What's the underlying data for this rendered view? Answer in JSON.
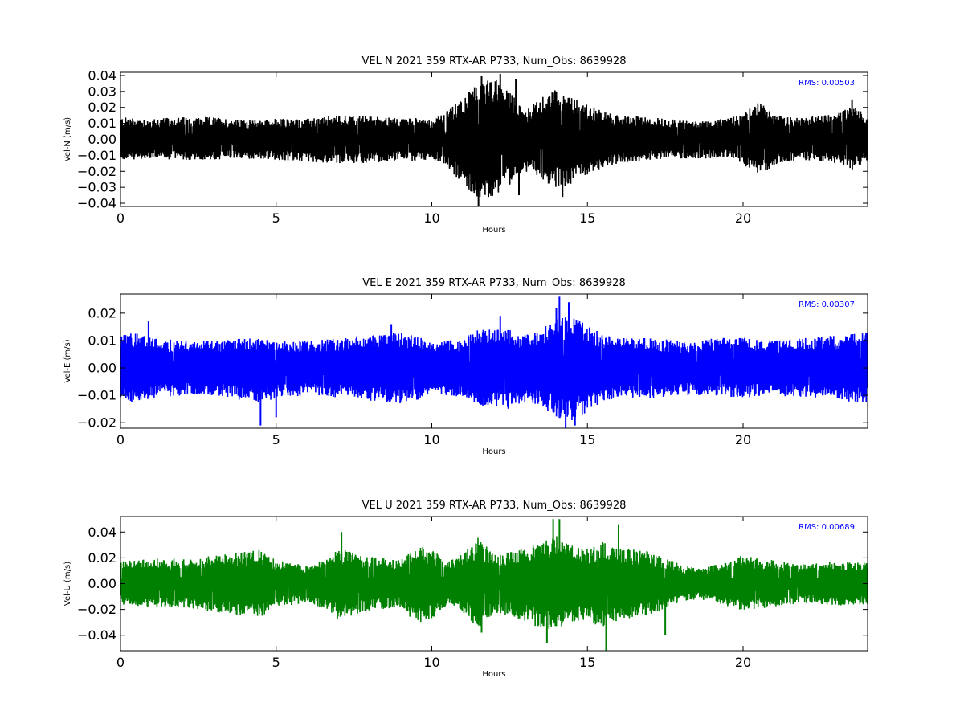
{
  "chart_data": [
    {
      "type": "line",
      "title": "VEL N 2021 359 RTX-AR  P733, Num_Obs: 8639928",
      "xlabel": "Hours",
      "ylabel": "Vel-N (m/s)",
      "xlim": [
        0,
        24
      ],
      "ylim": [
        -0.042,
        0.042
      ],
      "xticks": [
        0,
        5,
        10,
        15,
        20
      ],
      "xtick_labels": [
        "0",
        "5",
        "10",
        "15",
        "20"
      ],
      "yticks": [
        -0.04,
        -0.03,
        -0.02,
        -0.01,
        0.0,
        0.01,
        0.02,
        0.03,
        0.04
      ],
      "ytick_labels": [
        "−0.04",
        "−0.03",
        "−0.02",
        "−0.01",
        "0.00",
        "0.01",
        "0.02",
        "0.03",
        "0.04"
      ],
      "color": "#000000",
      "rms_text": "RMS:  0.00503",
      "grid": false,
      "series": [
        {
          "envelope": {
            "x": [
              0,
              1,
              2,
              3,
              4,
              5,
              6,
              7,
              8,
              9,
              9.5,
              10,
              10.5,
              11,
              11.5,
              12,
              12.5,
              13,
              13.5,
              14,
              14.5,
              15,
              15.5,
              16,
              17,
              18,
              19,
              19.5,
              20,
              20.5,
              21,
              21.5,
              22,
              23,
              23.5,
              24
            ],
            "high": [
              0.014,
              0.013,
              0.014,
              0.014,
              0.012,
              0.013,
              0.013,
              0.015,
              0.015,
              0.013,
              0.015,
              0.012,
              0.018,
              0.027,
              0.035,
              0.039,
              0.03,
              0.018,
              0.026,
              0.032,
              0.027,
              0.022,
              0.018,
              0.015,
              0.014,
              0.012,
              0.012,
              0.013,
              0.016,
              0.024,
              0.016,
              0.014,
              0.014,
              0.016,
              0.022,
              0.015
            ],
            "low": [
              -0.013,
              -0.012,
              -0.013,
              -0.013,
              -0.012,
              -0.013,
              -0.014,
              -0.015,
              -0.015,
              -0.013,
              -0.014,
              -0.012,
              -0.018,
              -0.028,
              -0.037,
              -0.036,
              -0.029,
              -0.02,
              -0.025,
              -0.031,
              -0.028,
              -0.022,
              -0.018,
              -0.015,
              -0.013,
              -0.012,
              -0.012,
              -0.012,
              -0.016,
              -0.024,
              -0.016,
              -0.014,
              -0.013,
              -0.015,
              -0.019,
              -0.015
            ]
          },
          "peaks": [
            {
              "x": 11.5,
              "y": -0.042
            },
            {
              "x": 11.6,
              "y": 0.04
            },
            {
              "x": 12.2,
              "y": 0.041
            },
            {
              "x": 12.7,
              "y": 0.038
            },
            {
              "x": 12.8,
              "y": -0.035
            },
            {
              "x": 14.0,
              "y": 0.03
            },
            {
              "x": 14.2,
              "y": -0.036
            },
            {
              "x": 23.5,
              "y": 0.025
            }
          ]
        }
      ]
    },
    {
      "type": "line",
      "title": "VEL E 2021 359 RTX-AR  P733, Num_Obs: 8639928",
      "xlabel": "Hours",
      "ylabel": "Vel-E (m/s)",
      "xlim": [
        0,
        24
      ],
      "ylim": [
        -0.022,
        0.027
      ],
      "xticks": [
        0,
        5,
        10,
        15,
        20
      ],
      "xtick_labels": [
        "0",
        "5",
        "10",
        "15",
        "20"
      ],
      "yticks": [
        -0.02,
        -0.01,
        0.0,
        0.01,
        0.02
      ],
      "ytick_labels": [
        "−0.02",
        "−0.01",
        "0.00",
        "0.01",
        "0.02"
      ],
      "color": "#0000ff",
      "rms_text": "RMS:  0.00307",
      "grid": false,
      "series": [
        {
          "envelope": {
            "x": [
              0,
              0.5,
              1,
              2,
              3,
              4,
              4.5,
              5,
              6,
              7,
              8,
              9,
              9.5,
              10,
              11,
              11.5,
              12,
              12.5,
              13,
              13.5,
              14,
              14.5,
              15,
              15.5,
              16,
              17,
              18,
              19,
              20,
              21,
              22,
              23,
              24
            ],
            "high": [
              0.012,
              0.013,
              0.011,
              0.01,
              0.01,
              0.011,
              0.011,
              0.01,
              0.01,
              0.011,
              0.012,
              0.013,
              0.012,
              0.009,
              0.011,
              0.014,
              0.014,
              0.014,
              0.012,
              0.014,
              0.018,
              0.019,
              0.016,
              0.012,
              0.011,
              0.011,
              0.01,
              0.011,
              0.011,
              0.01,
              0.011,
              0.012,
              0.013
            ],
            "low": [
              -0.012,
              -0.013,
              -0.011,
              -0.01,
              -0.01,
              -0.012,
              -0.013,
              -0.011,
              -0.01,
              -0.011,
              -0.012,
              -0.013,
              -0.012,
              -0.009,
              -0.011,
              -0.014,
              -0.014,
              -0.015,
              -0.013,
              -0.014,
              -0.018,
              -0.02,
              -0.016,
              -0.012,
              -0.011,
              -0.011,
              -0.01,
              -0.01,
              -0.011,
              -0.01,
              -0.011,
              -0.012,
              -0.013
            ]
          },
          "peaks": [
            {
              "x": 4.5,
              "y": -0.021
            },
            {
              "x": 5.0,
              "y": -0.018
            },
            {
              "x": 8.7,
              "y": 0.016
            },
            {
              "x": 12.2,
              "y": 0.019
            },
            {
              "x": 14.0,
              "y": 0.022
            },
            {
              "x": 14.1,
              "y": 0.026
            },
            {
              "x": 14.4,
              "y": 0.024
            },
            {
              "x": 14.6,
              "y": -0.021
            },
            {
              "x": 14.3,
              "y": -0.022
            },
            {
              "x": 0.9,
              "y": 0.017
            }
          ]
        }
      ]
    },
    {
      "type": "line",
      "title": "VEL U 2021 359 RTX-AR  P733, Num_Obs: 8639928",
      "xlabel": "Hours",
      "ylabel": "Vel-U (m/s)",
      "xlim": [
        0,
        24
      ],
      "ylim": [
        -0.052,
        0.052
      ],
      "xticks": [
        0,
        5,
        10,
        15,
        20
      ],
      "xtick_labels": [
        "0",
        "5",
        "10",
        "15",
        "20"
      ],
      "yticks": [
        -0.04,
        -0.02,
        0.0,
        0.02,
        0.04
      ],
      "ytick_labels": [
        "−0.04",
        "−0.02",
        "0.00",
        "0.02",
        "0.04"
      ],
      "color": "#008000",
      "rms_text": "RMS:  0.00689",
      "grid": false,
      "series": [
        {
          "envelope": {
            "x": [
              0,
              1,
              2,
              3,
              4,
              4.5,
              5,
              6,
              6.5,
              7,
              7.5,
              8,
              9,
              9.5,
              10,
              10.5,
              11,
              11.5,
              12,
              12.5,
              13,
              13.5,
              14,
              14.5,
              15,
              15.5,
              16,
              17,
              18,
              18.5,
              19,
              20,
              21,
              22,
              23,
              24
            ],
            "high": [
              0.017,
              0.02,
              0.019,
              0.022,
              0.025,
              0.027,
              0.018,
              0.015,
              0.018,
              0.028,
              0.024,
              0.021,
              0.018,
              0.03,
              0.027,
              0.017,
              0.023,
              0.036,
              0.022,
              0.025,
              0.028,
              0.033,
              0.037,
              0.03,
              0.027,
              0.033,
              0.028,
              0.025,
              0.015,
              0.012,
              0.014,
              0.022,
              0.018,
              0.015,
              0.018,
              0.016
            ],
            "low": [
              -0.016,
              -0.019,
              -0.018,
              -0.022,
              -0.026,
              -0.027,
              -0.018,
              -0.015,
              -0.019,
              -0.029,
              -0.025,
              -0.021,
              -0.018,
              -0.031,
              -0.027,
              -0.017,
              -0.023,
              -0.037,
              -0.023,
              -0.025,
              -0.029,
              -0.035,
              -0.036,
              -0.03,
              -0.028,
              -0.035,
              -0.028,
              -0.025,
              -0.015,
              -0.012,
              -0.014,
              -0.021,
              -0.018,
              -0.015,
              -0.017,
              -0.016
            ]
          },
          "peaks": [
            {
              "x": 7.1,
              "y": 0.04
            },
            {
              "x": 11.6,
              "y": -0.038
            },
            {
              "x": 13.7,
              "y": -0.046
            },
            {
              "x": 13.9,
              "y": 0.05
            },
            {
              "x": 14.1,
              "y": 0.05
            },
            {
              "x": 15.6,
              "y": -0.052
            },
            {
              "x": 16.0,
              "y": 0.046
            },
            {
              "x": 17.5,
              "y": -0.04
            }
          ]
        }
      ]
    }
  ]
}
